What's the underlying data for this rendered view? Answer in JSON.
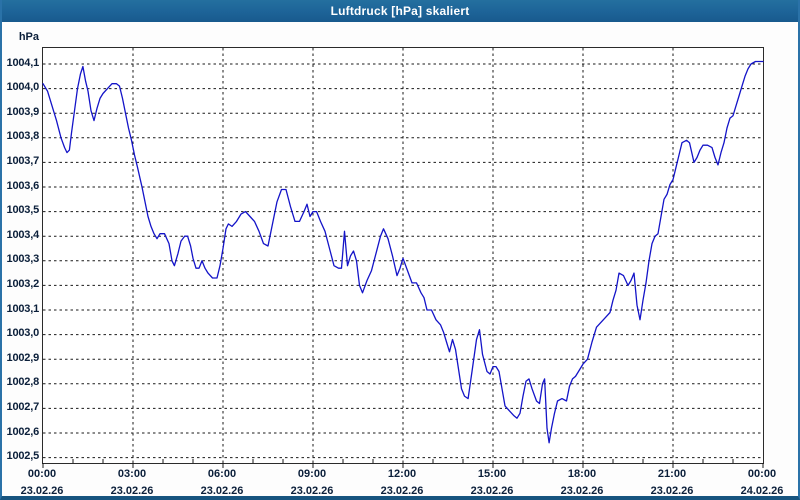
{
  "window": {
    "title": "Luftdruck [hPa] skaliert"
  },
  "colors": {
    "titlebar_bg": "#1d6398",
    "border_blue": "#2a72a8",
    "line_blue": "#1414c8",
    "grid_black": "#1a1a1a",
    "label_navy": "#0b1f3a",
    "plot_bg": "#ffffff"
  },
  "chart_data": {
    "type": "line",
    "title": "Luftdruck [hPa] skaliert",
    "grid": "dashed",
    "legend": "none",
    "y_axis": {
      "unit_label": "hPa",
      "min": 1002.5,
      "max": 1004.1,
      "step": 0.1,
      "labels": [
        "1004,1",
        "1004,0",
        "1003,9",
        "1003,8",
        "1003,7",
        "1003,6",
        "1003,5",
        "1003,4",
        "1003,3",
        "1003,2",
        "1003,1",
        "1003,0",
        "1002,9",
        "1002,8",
        "1002,7",
        "1002,6",
        "1002,5"
      ]
    },
    "x_axis": {
      "hours_span": 24,
      "major_tick_hours": 3,
      "ticks": [
        {
          "time": "00:00",
          "date": "23.02.26"
        },
        {
          "time": "03:00",
          "date": "23.02.26"
        },
        {
          "time": "06:00",
          "date": "23.02.26"
        },
        {
          "time": "09:00",
          "date": "23.02.26"
        },
        {
          "time": "12:00",
          "date": "23.02.26"
        },
        {
          "time": "15:00",
          "date": "23.02.26"
        },
        {
          "time": "18:00",
          "date": "23.02.26"
        },
        {
          "time": "21:00",
          "date": "23.02.26"
        },
        {
          "time": "00:00",
          "date": "24.02.26"
        }
      ]
    },
    "series": [
      {
        "name": "Luftdruck",
        "color": "#1414c8",
        "points": [
          [
            0.0,
            1004.02
          ],
          [
            0.15,
            1003.99
          ],
          [
            0.3,
            1003.93
          ],
          [
            0.45,
            1003.87
          ],
          [
            0.6,
            1003.8
          ],
          [
            0.72,
            1003.76
          ],
          [
            0.8,
            1003.74
          ],
          [
            0.88,
            1003.75
          ],
          [
            0.95,
            1003.82
          ],
          [
            1.05,
            1003.91
          ],
          [
            1.15,
            1004.0
          ],
          [
            1.25,
            1004.06
          ],
          [
            1.33,
            1004.09
          ],
          [
            1.42,
            1004.03
          ],
          [
            1.5,
            1003.99
          ],
          [
            1.6,
            1003.91
          ],
          [
            1.7,
            1003.87
          ],
          [
            1.8,
            1003.92
          ],
          [
            1.9,
            1003.96
          ],
          [
            2.0,
            1003.98
          ],
          [
            2.15,
            1004.0
          ],
          [
            2.3,
            1004.02
          ],
          [
            2.45,
            1004.02
          ],
          [
            2.55,
            1004.01
          ],
          [
            2.65,
            1003.96
          ],
          [
            2.75,
            1003.9
          ],
          [
            2.85,
            1003.84
          ],
          [
            2.95,
            1003.79
          ],
          [
            3.05,
            1003.73
          ],
          [
            3.15,
            1003.68
          ],
          [
            3.3,
            1003.6
          ],
          [
            3.4,
            1003.54
          ],
          [
            3.5,
            1003.48
          ],
          [
            3.6,
            1003.44
          ],
          [
            3.7,
            1003.41
          ],
          [
            3.8,
            1003.39
          ],
          [
            3.9,
            1003.41
          ],
          [
            4.05,
            1003.41
          ],
          [
            4.2,
            1003.37
          ],
          [
            4.3,
            1003.3
          ],
          [
            4.38,
            1003.28
          ],
          [
            4.5,
            1003.33
          ],
          [
            4.6,
            1003.38
          ],
          [
            4.72,
            1003.4
          ],
          [
            4.82,
            1003.4
          ],
          [
            4.92,
            1003.36
          ],
          [
            5.0,
            1003.31
          ],
          [
            5.1,
            1003.27
          ],
          [
            5.2,
            1003.27
          ],
          [
            5.3,
            1003.3
          ],
          [
            5.4,
            1003.27
          ],
          [
            5.5,
            1003.25
          ],
          [
            5.65,
            1003.23
          ],
          [
            5.8,
            1003.23
          ],
          [
            5.9,
            1003.28
          ],
          [
            6.0,
            1003.35
          ],
          [
            6.1,
            1003.43
          ],
          [
            6.18,
            1003.45
          ],
          [
            6.3,
            1003.44
          ],
          [
            6.45,
            1003.46
          ],
          [
            6.6,
            1003.49
          ],
          [
            6.75,
            1003.5
          ],
          [
            6.9,
            1003.48
          ],
          [
            7.05,
            1003.46
          ],
          [
            7.2,
            1003.42
          ],
          [
            7.35,
            1003.37
          ],
          [
            7.5,
            1003.36
          ],
          [
            7.65,
            1003.45
          ],
          [
            7.8,
            1003.54
          ],
          [
            7.95,
            1003.59
          ],
          [
            8.1,
            1003.59
          ],
          [
            8.25,
            1003.52
          ],
          [
            8.4,
            1003.46
          ],
          [
            8.55,
            1003.46
          ],
          [
            8.7,
            1003.5
          ],
          [
            8.8,
            1003.53
          ],
          [
            8.9,
            1003.48
          ],
          [
            9.0,
            1003.5
          ],
          [
            9.12,
            1003.5
          ],
          [
            9.25,
            1003.46
          ],
          [
            9.4,
            1003.42
          ],
          [
            9.55,
            1003.35
          ],
          [
            9.7,
            1003.28
          ],
          [
            9.85,
            1003.27
          ],
          [
            9.95,
            1003.27
          ],
          [
            10.05,
            1003.42
          ],
          [
            10.15,
            1003.28
          ],
          [
            10.25,
            1003.32
          ],
          [
            10.35,
            1003.34
          ],
          [
            10.45,
            1003.3
          ],
          [
            10.55,
            1003.2
          ],
          [
            10.65,
            1003.17
          ],
          [
            10.8,
            1003.22
          ],
          [
            10.95,
            1003.26
          ],
          [
            11.1,
            1003.33
          ],
          [
            11.25,
            1003.4
          ],
          [
            11.35,
            1003.43
          ],
          [
            11.5,
            1003.39
          ],
          [
            11.65,
            1003.32
          ],
          [
            11.8,
            1003.24
          ],
          [
            11.9,
            1003.27
          ],
          [
            12.0,
            1003.31
          ],
          [
            12.15,
            1003.26
          ],
          [
            12.3,
            1003.21
          ],
          [
            12.45,
            1003.21
          ],
          [
            12.6,
            1003.17
          ],
          [
            12.7,
            1003.15
          ],
          [
            12.8,
            1003.1
          ],
          [
            12.95,
            1003.1
          ],
          [
            13.1,
            1003.06
          ],
          [
            13.25,
            1003.04
          ],
          [
            13.35,
            1003.01
          ],
          [
            13.45,
            1002.97
          ],
          [
            13.55,
            1002.93
          ],
          [
            13.65,
            1002.98
          ],
          [
            13.75,
            1002.94
          ],
          [
            13.85,
            1002.86
          ],
          [
            13.95,
            1002.78
          ],
          [
            14.05,
            1002.75
          ],
          [
            14.17,
            1002.74
          ],
          [
            14.3,
            1002.85
          ],
          [
            14.45,
            1002.98
          ],
          [
            14.55,
            1003.02
          ],
          [
            14.65,
            1002.92
          ],
          [
            14.8,
            1002.85
          ],
          [
            14.9,
            1002.84
          ],
          [
            15.0,
            1002.87
          ],
          [
            15.1,
            1002.87
          ],
          [
            15.2,
            1002.85
          ],
          [
            15.3,
            1002.78
          ],
          [
            15.4,
            1002.71
          ],
          [
            15.55,
            1002.69
          ],
          [
            15.7,
            1002.67
          ],
          [
            15.8,
            1002.66
          ],
          [
            15.9,
            1002.68
          ],
          [
            16.0,
            1002.75
          ],
          [
            16.1,
            1002.81
          ],
          [
            16.2,
            1002.82
          ],
          [
            16.3,
            1002.78
          ],
          [
            16.45,
            1002.73
          ],
          [
            16.55,
            1002.72
          ],
          [
            16.65,
            1002.8
          ],
          [
            16.72,
            1002.82
          ],
          [
            16.8,
            1002.62
          ],
          [
            16.87,
            1002.56
          ],
          [
            16.95,
            1002.62
          ],
          [
            17.05,
            1002.68
          ],
          [
            17.15,
            1002.73
          ],
          [
            17.3,
            1002.74
          ],
          [
            17.45,
            1002.73
          ],
          [
            17.55,
            1002.79
          ],
          [
            17.65,
            1002.82
          ],
          [
            17.75,
            1002.83
          ],
          [
            17.85,
            1002.85
          ],
          [
            18.0,
            1002.88
          ],
          [
            18.15,
            1002.9
          ],
          [
            18.3,
            1002.97
          ],
          [
            18.45,
            1003.03
          ],
          [
            18.6,
            1003.05
          ],
          [
            18.75,
            1003.07
          ],
          [
            18.9,
            1003.09
          ],
          [
            19.0,
            1003.14
          ],
          [
            19.1,
            1003.18
          ],
          [
            19.2,
            1003.25
          ],
          [
            19.35,
            1003.24
          ],
          [
            19.5,
            1003.2
          ],
          [
            19.6,
            1003.22
          ],
          [
            19.7,
            1003.25
          ],
          [
            19.8,
            1003.12
          ],
          [
            19.9,
            1003.06
          ],
          [
            20.0,
            1003.14
          ],
          [
            20.1,
            1003.21
          ],
          [
            20.2,
            1003.3
          ],
          [
            20.3,
            1003.37
          ],
          [
            20.4,
            1003.4
          ],
          [
            20.5,
            1003.41
          ],
          [
            20.6,
            1003.48
          ],
          [
            20.7,
            1003.55
          ],
          [
            20.8,
            1003.57
          ],
          [
            20.9,
            1003.61
          ],
          [
            21.0,
            1003.63
          ],
          [
            21.1,
            1003.68
          ],
          [
            21.2,
            1003.73
          ],
          [
            21.3,
            1003.78
          ],
          [
            21.45,
            1003.79
          ],
          [
            21.55,
            1003.78
          ],
          [
            21.7,
            1003.7
          ],
          [
            21.8,
            1003.72
          ],
          [
            21.9,
            1003.75
          ],
          [
            22.0,
            1003.77
          ],
          [
            22.15,
            1003.77
          ],
          [
            22.3,
            1003.76
          ],
          [
            22.4,
            1003.72
          ],
          [
            22.5,
            1003.69
          ],
          [
            22.6,
            1003.74
          ],
          [
            22.7,
            1003.78
          ],
          [
            22.8,
            1003.84
          ],
          [
            22.9,
            1003.88
          ],
          [
            23.0,
            1003.89
          ],
          [
            23.1,
            1003.93
          ],
          [
            23.2,
            1003.97
          ],
          [
            23.3,
            1004.01
          ],
          [
            23.4,
            1004.05
          ],
          [
            23.5,
            1004.08
          ],
          [
            23.6,
            1004.1
          ],
          [
            23.75,
            1004.11
          ],
          [
            23.9,
            1004.11
          ],
          [
            24.0,
            1004.11
          ]
        ]
      }
    ]
  }
}
